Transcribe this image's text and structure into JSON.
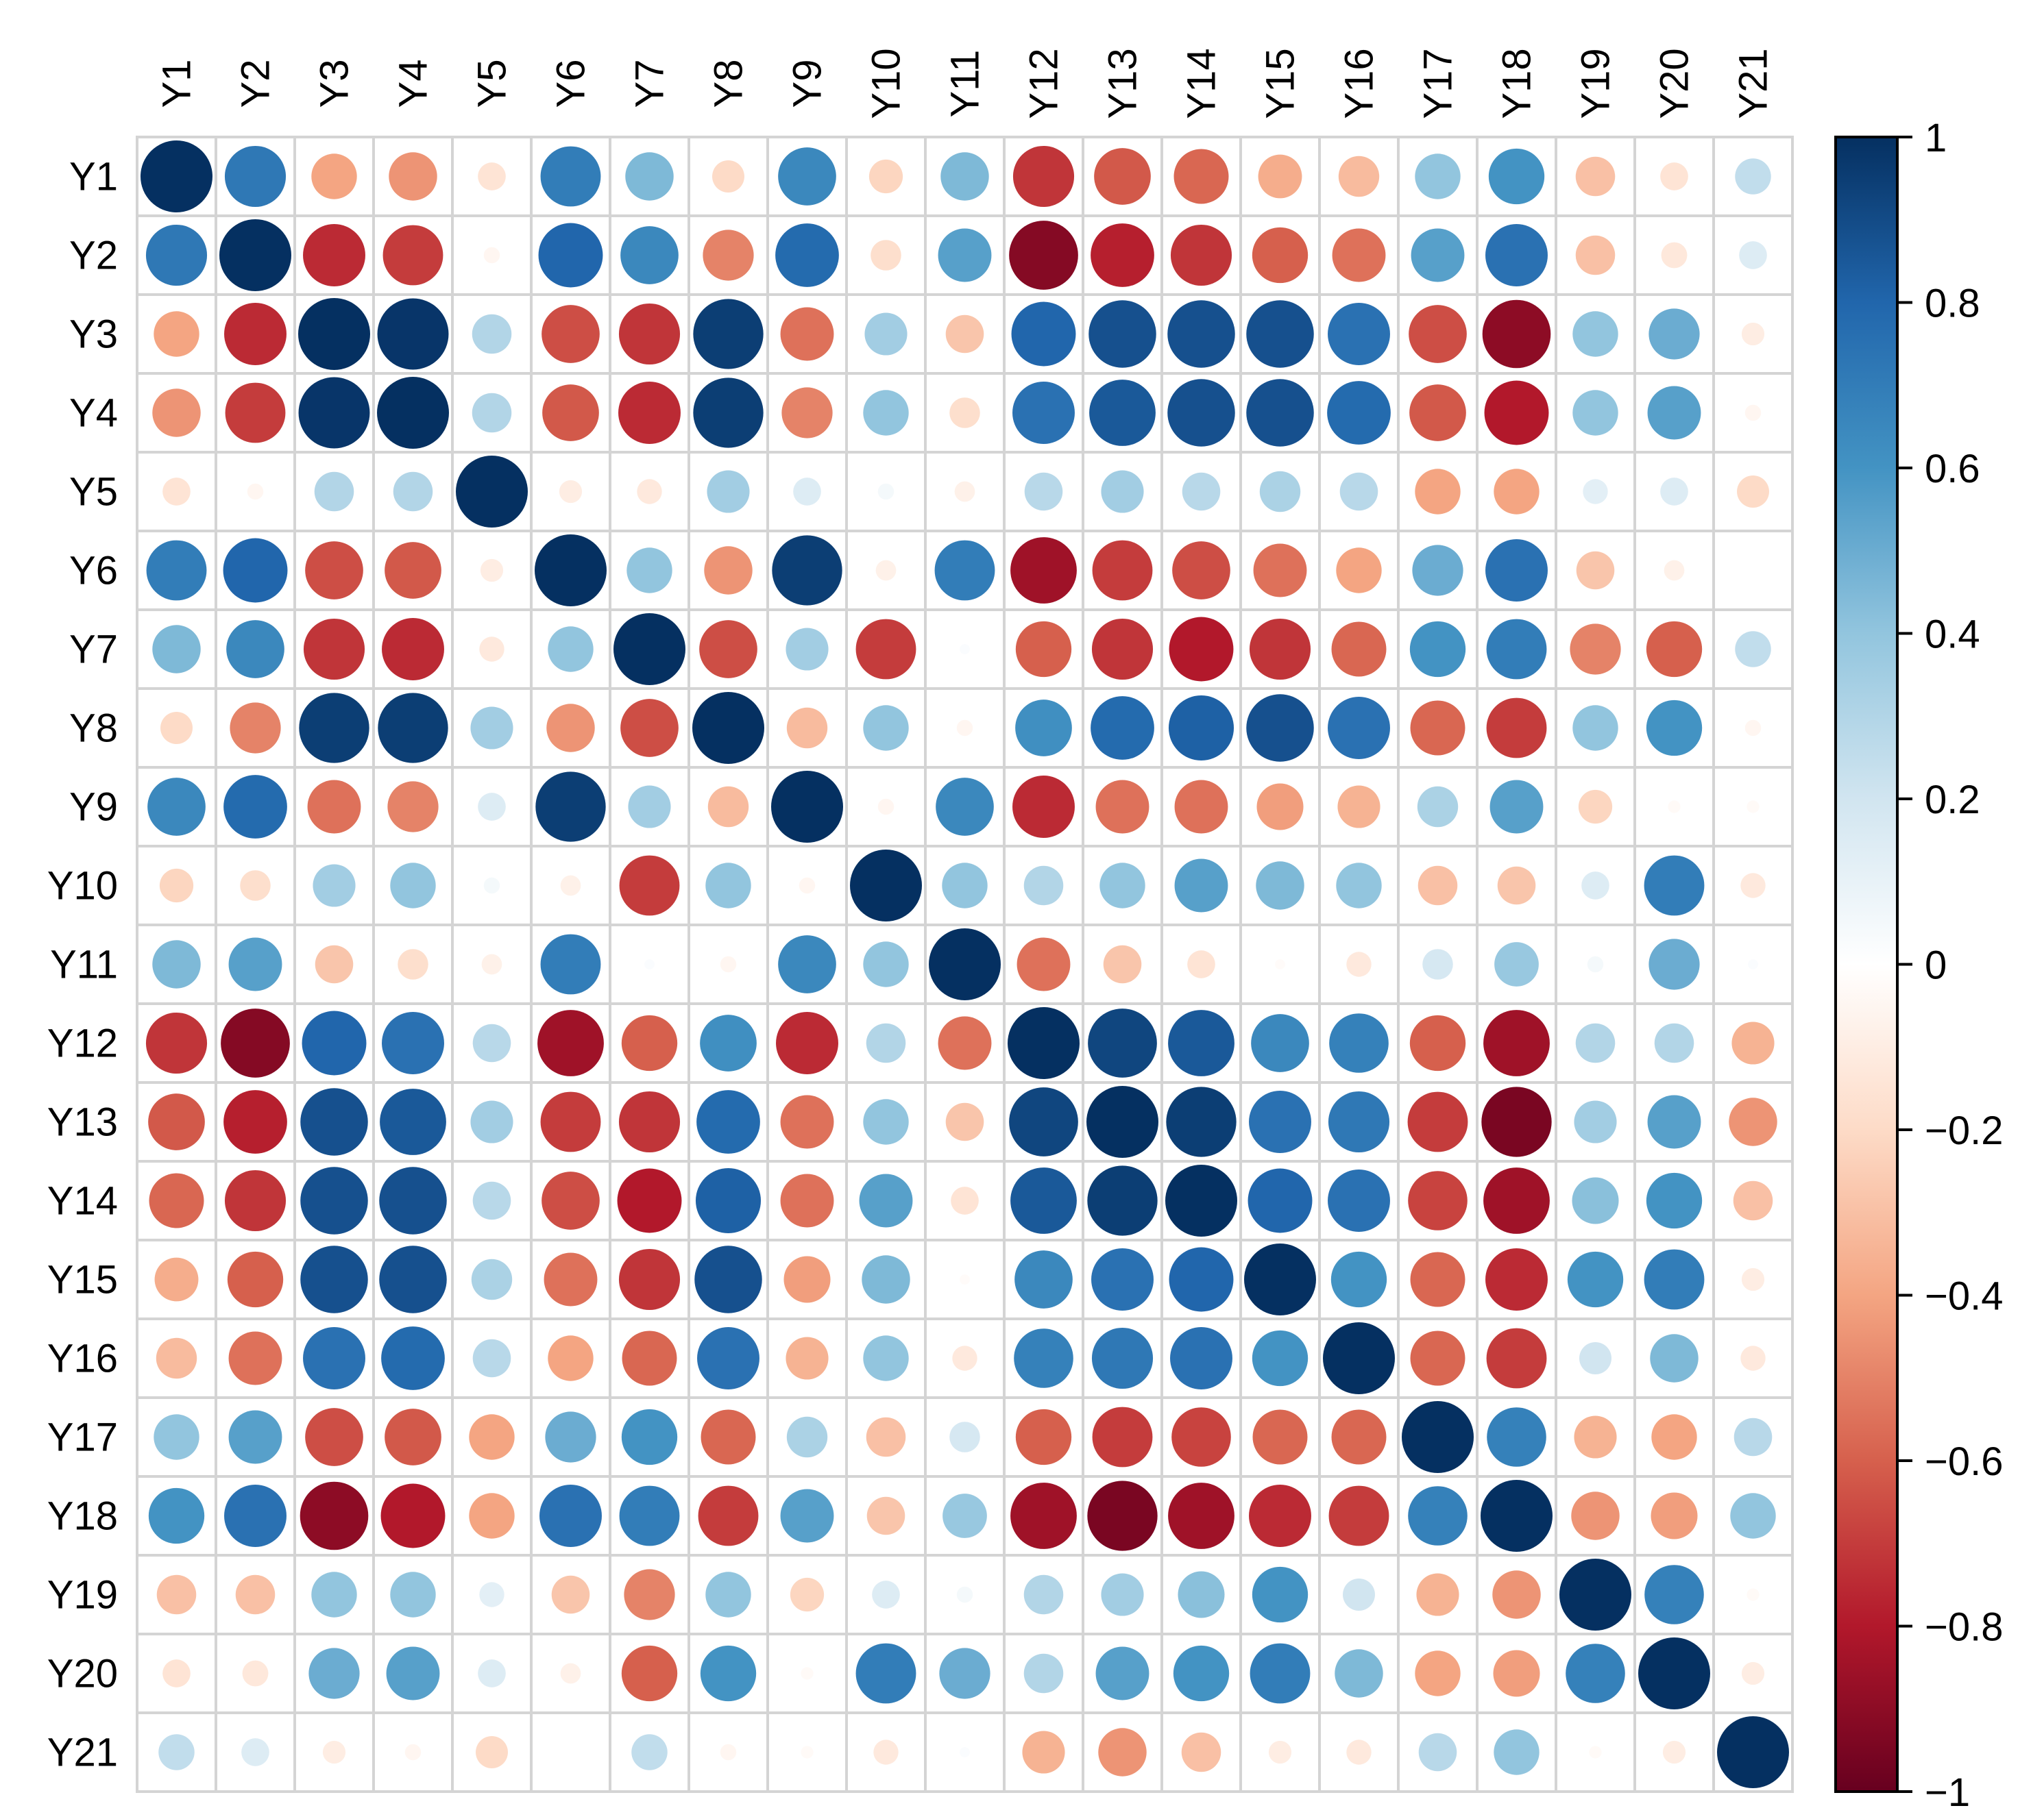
{
  "chart_data": {
    "type": "heatmap",
    "title": "",
    "xlabel": "",
    "ylabel": "",
    "variables": [
      "Y1",
      "Y2",
      "Y3",
      "Y4",
      "Y5",
      "Y6",
      "Y7",
      "Y8",
      "Y9",
      "Y10",
      "Y11",
      "Y12",
      "Y13",
      "Y14",
      "Y15",
      "Y16",
      "Y17",
      "Y18",
      "Y19",
      "Y20",
      "Y21"
    ],
    "value_range": [
      -1,
      1
    ],
    "grid": true,
    "colorbar": {
      "position": "right",
      "ticks": [
        "1",
        "0.8",
        "0.6",
        "0.4",
        "0.2",
        "0",
        "−0.2",
        "−0.4",
        "−0.6",
        "−0.8",
        "−1"
      ],
      "tick_values": [
        1,
        0.8,
        0.6,
        0.4,
        0.2,
        0,
        -0.2,
        -0.4,
        -0.6,
        -0.8,
        -1
      ]
    },
    "matrix": [
      [
        1.0,
        0.72,
        -0.4,
        -0.45,
        -0.15,
        0.7,
        0.45,
        -0.2,
        0.65,
        -0.22,
        0.45,
        -0.72,
        -0.62,
        -0.58,
        -0.37,
        -0.32,
        0.4,
        0.6,
        -0.3,
        -0.15,
        0.25
      ],
      [
        0.72,
        1.0,
        -0.75,
        -0.7,
        -0.05,
        0.8,
        0.65,
        -0.5,
        0.78,
        -0.18,
        0.55,
        -0.92,
        -0.78,
        -0.72,
        -0.6,
        -0.55,
        0.55,
        0.75,
        -0.3,
        -0.13,
        0.15
      ],
      [
        -0.4,
        -0.75,
        1.0,
        0.98,
        0.3,
        -0.65,
        -0.72,
        0.95,
        -0.55,
        0.35,
        -0.28,
        0.8,
        0.88,
        0.88,
        0.88,
        0.75,
        -0.65,
        -0.9,
        0.4,
        0.5,
        -0.1
      ],
      [
        -0.45,
        -0.7,
        0.98,
        1.0,
        0.3,
        -0.62,
        -0.75,
        0.95,
        -0.5,
        0.4,
        -0.18,
        0.75,
        0.85,
        0.88,
        0.88,
        0.78,
        -0.62,
        -0.8,
        0.4,
        0.55,
        -0.05
      ],
      [
        -0.15,
        -0.05,
        0.3,
        0.3,
        1.0,
        -0.1,
        -0.12,
        0.35,
        0.15,
        0.05,
        -0.08,
        0.28,
        0.35,
        0.28,
        0.32,
        0.28,
        -0.4,
        -0.4,
        0.12,
        0.15,
        -0.2
      ],
      [
        0.7,
        0.8,
        -0.65,
        -0.62,
        -0.1,
        1.0,
        0.4,
        -0.45,
        0.95,
        -0.08,
        0.7,
        -0.85,
        -0.7,
        -0.65,
        -0.55,
        -0.4,
        0.5,
        0.75,
        -0.28,
        -0.08,
        0.0
      ],
      [
        0.45,
        0.65,
        -0.72,
        -0.75,
        -0.12,
        0.4,
        1.0,
        -0.65,
        0.35,
        -0.7,
        0.02,
        -0.6,
        -0.72,
        -0.8,
        -0.72,
        -0.58,
        0.6,
        0.7,
        -0.5,
        -0.6,
        0.25
      ],
      [
        -0.2,
        -0.5,
        0.95,
        0.95,
        0.35,
        -0.45,
        -0.65,
        1.0,
        -0.32,
        0.4,
        -0.05,
        0.62,
        0.78,
        0.82,
        0.88,
        0.75,
        -0.58,
        -0.7,
        0.4,
        0.6,
        -0.05
      ],
      [
        0.65,
        0.78,
        -0.55,
        -0.5,
        0.15,
        0.95,
        0.35,
        -0.32,
        1.0,
        -0.05,
        0.65,
        -0.75,
        -0.55,
        -0.55,
        -0.42,
        -0.35,
        0.32,
        0.55,
        -0.22,
        -0.03,
        -0.03
      ],
      [
        -0.22,
        -0.18,
        0.35,
        0.4,
        0.05,
        -0.08,
        -0.7,
        0.4,
        -0.05,
        1.0,
        0.4,
        0.3,
        0.4,
        0.55,
        0.45,
        0.4,
        -0.3,
        -0.28,
        0.15,
        0.7,
        -0.12
      ],
      [
        0.45,
        0.55,
        -0.28,
        -0.18,
        -0.08,
        0.7,
        0.02,
        -0.05,
        0.65,
        0.4,
        1.0,
        -0.55,
        -0.28,
        -0.15,
        -0.02,
        -0.12,
        0.18,
        0.38,
        0.05,
        0.5,
        0.02
      ],
      [
        -0.72,
        -0.92,
        0.8,
        0.75,
        0.28,
        -0.85,
        -0.6,
        0.62,
        -0.75,
        0.3,
        -0.55,
        1.0,
        0.92,
        0.85,
        0.65,
        0.68,
        -0.6,
        -0.85,
        0.3,
        0.3,
        -0.35
      ],
      [
        -0.62,
        -0.78,
        0.88,
        0.85,
        0.35,
        -0.7,
        -0.72,
        0.78,
        -0.55,
        0.4,
        -0.28,
        0.92,
        1.0,
        0.95,
        0.75,
        0.72,
        -0.7,
        -0.95,
        0.35,
        0.55,
        -0.45
      ],
      [
        -0.58,
        -0.72,
        0.88,
        0.88,
        0.28,
        -0.65,
        -0.8,
        0.82,
        -0.55,
        0.55,
        -0.15,
        0.85,
        0.95,
        1.0,
        0.8,
        0.75,
        -0.68,
        -0.85,
        0.42,
        0.6,
        -0.3
      ],
      [
        -0.37,
        -0.6,
        0.88,
        0.88,
        0.32,
        -0.55,
        -0.72,
        0.88,
        -0.42,
        0.45,
        -0.02,
        0.65,
        0.75,
        0.8,
        1.0,
        0.6,
        -0.58,
        -0.75,
        0.6,
        0.7,
        -0.1
      ],
      [
        -0.32,
        -0.55,
        0.75,
        0.78,
        0.28,
        -0.4,
        -0.58,
        0.75,
        -0.35,
        0.4,
        -0.12,
        0.68,
        0.72,
        0.75,
        0.6,
        1.0,
        -0.58,
        -0.7,
        0.2,
        0.45,
        -0.12
      ],
      [
        0.4,
        0.55,
        -0.65,
        -0.62,
        -0.4,
        0.5,
        0.6,
        -0.58,
        0.32,
        -0.3,
        0.18,
        -0.6,
        -0.7,
        -0.68,
        -0.58,
        -0.58,
        1.0,
        0.68,
        -0.35,
        -0.4,
        0.28
      ],
      [
        0.6,
        0.75,
        -0.9,
        -0.8,
        -0.4,
        0.75,
        0.7,
        -0.7,
        0.55,
        -0.28,
        0.38,
        -0.85,
        -0.95,
        -0.85,
        -0.75,
        -0.7,
        0.68,
        1.0,
        -0.45,
        -0.42,
        0.4
      ],
      [
        -0.3,
        -0.3,
        0.4,
        0.4,
        0.12,
        -0.28,
        -0.5,
        0.4,
        -0.22,
        0.15,
        0.05,
        0.3,
        0.35,
        0.42,
        0.6,
        0.2,
        -0.35,
        -0.45,
        1.0,
        0.68,
        -0.03
      ],
      [
        -0.15,
        -0.13,
        0.5,
        0.55,
        0.15,
        -0.08,
        -0.6,
        0.6,
        -0.03,
        0.7,
        0.5,
        0.3,
        0.55,
        0.6,
        0.7,
        0.45,
        -0.4,
        -0.42,
        0.68,
        1.0,
        -0.1
      ],
      [
        0.25,
        0.15,
        -0.1,
        -0.05,
        -0.2,
        0.0,
        0.25,
        -0.05,
        -0.03,
        -0.12,
        0.02,
        -0.35,
        -0.45,
        -0.3,
        -0.1,
        -0.12,
        0.28,
        0.4,
        -0.03,
        -0.1,
        1.0
      ]
    ]
  },
  "colors": {
    "grid": "#d4d4d4",
    "colorbar_border": "#000000",
    "scale": [
      "#67001f",
      "#b2182b",
      "#d6604d",
      "#f4a582",
      "#fddbc7",
      "#ffffff",
      "#d1e5f0",
      "#92c5de",
      "#4393c3",
      "#2166ac",
      "#053061"
    ],
    "scale_stops": [
      -1,
      -0.8,
      -0.6,
      -0.4,
      -0.2,
      0,
      0.2,
      0.4,
      0.6,
      0.8,
      1
    ]
  }
}
